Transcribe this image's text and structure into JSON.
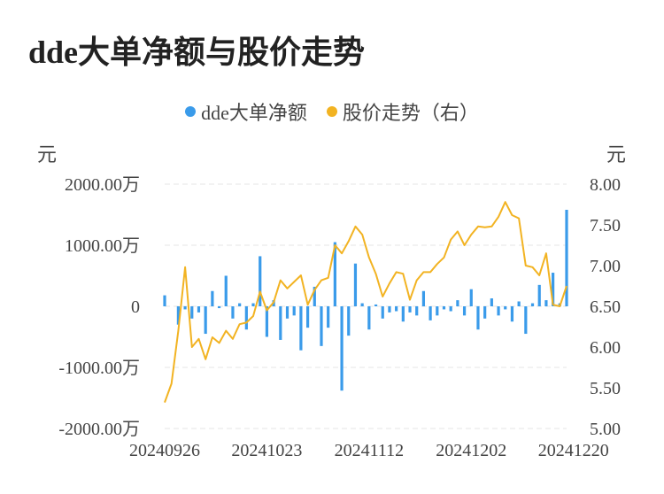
{
  "title": "dde大单净额与股价走势",
  "legend": {
    "series1": "dde大单净额",
    "series2": "股价走势（右）"
  },
  "colors": {
    "bar": "#3a9bea",
    "line": "#f2b322",
    "grid": "#e6e6e6",
    "axis_text": "#444444"
  },
  "axes": {
    "left_unit": "元",
    "right_unit": "元",
    "left_ticks": [
      "2000.00万",
      "1000.00万",
      "0",
      "-1000.00万",
      "-2000.00万"
    ],
    "right_ticks": [
      "8.00",
      "7.50",
      "7.00",
      "6.50",
      "6.00",
      "5.50",
      "5.00"
    ],
    "x_ticks": [
      "20240926",
      "20241023",
      "20241112",
      "20241202",
      "20241220"
    ]
  },
  "chart_data": {
    "type": "bar+line",
    "title": "dde大单净额与股价走势",
    "y_left_lim": [
      -2000,
      2000
    ],
    "y_right_lim": [
      5.0,
      8.0
    ],
    "x_tick_labels": [
      "20240926",
      "20241023",
      "20241112",
      "20241202",
      "20241220"
    ],
    "x_tick_indices": [
      0,
      15,
      30,
      45,
      60
    ],
    "series": [
      {
        "name": "dde大单净额",
        "axis": "left",
        "type": "bar",
        "values": [
          180,
          0,
          -300,
          -50,
          -200,
          -100,
          -450,
          250,
          -30,
          500,
          -200,
          50,
          -380,
          50,
          820,
          -500,
          100,
          -550,
          -200,
          -150,
          -720,
          -350,
          320,
          -650,
          -350,
          1050,
          -1380,
          -480,
          700,
          50,
          -380,
          30,
          -200,
          -100,
          -80,
          -250,
          -100,
          -150,
          250,
          -230,
          -150,
          -50,
          -80,
          100,
          -150,
          280,
          -380,
          -200,
          130,
          -150,
          -50,
          -250,
          80,
          -450,
          50,
          350,
          100,
          550,
          50,
          1580
        ]
      },
      {
        "name": "股价走势（右）",
        "axis": "right",
        "type": "line",
        "values": [
          5.32,
          5.55,
          6.2,
          6.98,
          6.0,
          6.1,
          5.85,
          6.12,
          6.05,
          6.2,
          6.1,
          6.28,
          6.3,
          6.38,
          6.68,
          6.45,
          6.55,
          6.82,
          6.72,
          6.8,
          6.88,
          6.52,
          6.7,
          6.82,
          6.85,
          7.25,
          7.15,
          7.3,
          7.48,
          7.38,
          7.1,
          6.9,
          6.62,
          6.78,
          6.92,
          6.9,
          6.58,
          6.82,
          6.92,
          6.92,
          7.02,
          7.1,
          7.32,
          7.42,
          7.25,
          7.38,
          7.48,
          7.47,
          7.48,
          7.6,
          7.78,
          7.62,
          7.58,
          7.0,
          6.98,
          6.88,
          7.15,
          6.52,
          6.5,
          6.75
        ]
      }
    ]
  }
}
